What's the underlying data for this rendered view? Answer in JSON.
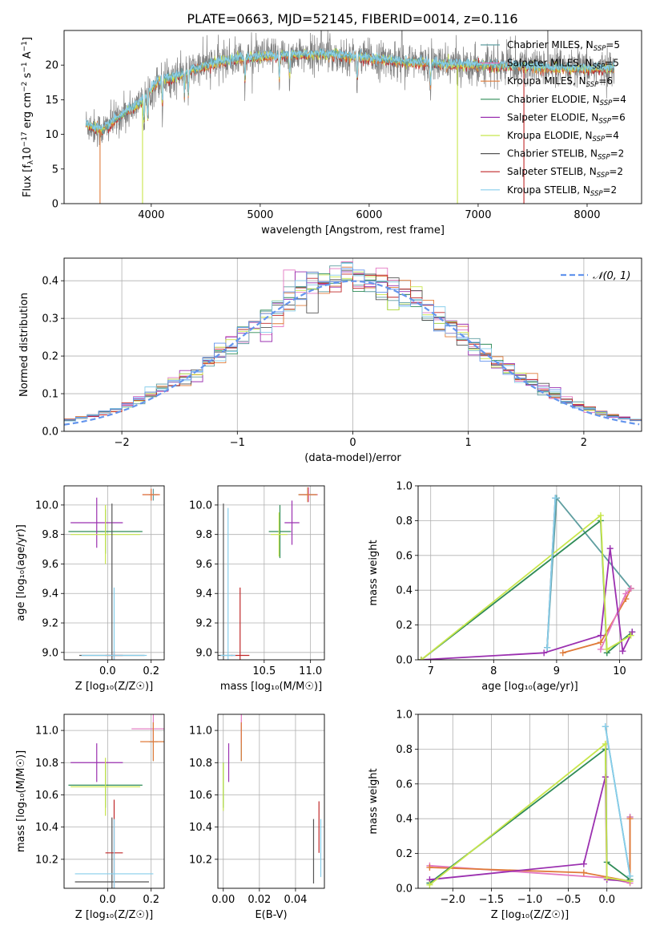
{
  "figure_title": "PLATE=0663, MJD=52145, FIBERID=0014, z=0.116",
  "colors": {
    "Chabrier MILES": "#5f9ea0",
    "Salpeter MILES": "#e377c2",
    "Kroupa MILES": "#e07b39",
    "Chabrier ELODIE": "#2e8b57",
    "Salpeter ELODIE": "#9b30b0",
    "Kroupa ELODIE": "#c8e64c",
    "Chabrier STELIB": "#555555",
    "Salpeter STELIB": "#c0282a",
    "Kroupa STELIB": "#87ceeb",
    "extra": "#6495ed"
  },
  "chart_data": [
    {
      "type": "line",
      "title": "PLATE=0663, MJD=52145, FIBERID=0014, z=0.116",
      "xlabel": "wavelength [Angstrom, rest frame]",
      "ylabel_parts": [
        "Flux [f",
        "λ",
        "10",
        "−17",
        " erg cm",
        "−2",
        " s",
        "−1",
        " A",
        "−1",
        "]"
      ],
      "xlim": [
        3200,
        8500
      ],
      "ylim": [
        0,
        25
      ],
      "xticks": [
        4000,
        5000,
        6000,
        7000,
        8000
      ],
      "yticks": [
        0,
        5,
        10,
        15,
        20
      ],
      "legend_position": "right",
      "legend": [
        {
          "name": "Chabrier MILES",
          "nssp": "5"
        },
        {
          "name": "Salpeter MILES",
          "nssp": "5"
        },
        {
          "name": "Kroupa MILES",
          "nssp": "6"
        },
        {
          "name": "Chabrier ELODIE",
          "nssp": "4"
        },
        {
          "name": "Salpeter ELODIE",
          "nssp": "6"
        },
        {
          "name": "Kroupa ELODIE",
          "nssp": "4"
        },
        {
          "name": "Chabrier STELIB",
          "nssp": "2"
        },
        {
          "name": "Salpeter STELIB",
          "nssp": "2"
        },
        {
          "name": "Kroupa STELIB",
          "nssp": "2"
        }
      ],
      "spectrum_trend": {
        "x": [
          3400,
          3550,
          3700,
          3900,
          4050,
          4250,
          4500,
          4800,
          5000,
          5300,
          5600,
          6000,
          6300,
          6600,
          7000,
          7400,
          7800,
          8250
        ],
        "y": [
          11.5,
          10.5,
          12.5,
          14.5,
          17.5,
          18.5,
          20.0,
          21.0,
          21.2,
          21.5,
          21.6,
          21.0,
          20.5,
          20.2,
          20.0,
          19.8,
          19.5,
          19.5
        ]
      }
    },
    {
      "type": "step",
      "xlabel": "(data-model)/error",
      "ylabel": "Normed distribution",
      "xlim": [
        -2.5,
        2.5
      ],
      "ylim": [
        0,
        0.46
      ],
      "xticks": [
        -2,
        -1,
        0,
        1,
        2
      ],
      "xtick_labels": [
        "−2",
        "−1",
        "0",
        "1",
        "2"
      ],
      "yticks": [
        0.0,
        0.1,
        0.2,
        0.3,
        0.4
      ],
      "legend_position": "top-right",
      "legend": "𝒩(0, 1)",
      "reference_curve": "normal(0,1)",
      "histogram_bins": [
        -2.5,
        -2.4,
        -2.3,
        -2.2,
        -2.1,
        -2.0,
        -1.9,
        -1.8,
        -1.7,
        -1.6,
        -1.5,
        -1.4,
        -1.3,
        -1.2,
        -1.1,
        -1.0,
        -0.9,
        -0.8,
        -0.7,
        -0.6,
        -0.5,
        -0.4,
        -0.3,
        -0.2,
        -0.1,
        0.0,
        0.1,
        0.2,
        0.3,
        0.4,
        0.5,
        0.6,
        0.7,
        0.8,
        0.9,
        1.0,
        1.1,
        1.2,
        1.3,
        1.4,
        1.5,
        1.6,
        1.7,
        1.8,
        1.9,
        2.0,
        2.1,
        2.2,
        2.3,
        2.4,
        2.5
      ]
    },
    {
      "type": "errorbar",
      "xlabel": "Z [log₁₀(Z/Z☉)]",
      "ylabel": "age  [log₁₀(age/yr)]",
      "xlim": [
        -0.2,
        0.26
      ],
      "ylim": [
        8.95,
        10.13
      ],
      "xticks": [
        0.0,
        0.2
      ],
      "xtick_labels": [
        "0.0",
        "0.2"
      ],
      "yticks": [
        9.0,
        9.2,
        9.4,
        9.6,
        9.8,
        10.0
      ],
      "points": [
        {
          "series": "Chabrier MILES",
          "x": 0.21,
          "xerr": 0.02,
          "y": 10.07,
          "yerr": 0.04
        },
        {
          "series": "Salpeter MILES",
          "x": 0.2,
          "xerr": 0.04,
          "y": 10.07,
          "yerr": 0.04
        },
        {
          "series": "Kroupa MILES",
          "x": 0.2,
          "xerr": 0.04,
          "y": 10.07,
          "yerr": 0.04
        },
        {
          "series": "Chabrier ELODIE",
          "x": -0.01,
          "xerr": 0.17,
          "y": 9.82,
          "yerr": 0.15
        },
        {
          "series": "Salpeter ELODIE",
          "x": -0.05,
          "xerr": 0.12,
          "y": 9.88,
          "yerr": 0.17
        },
        {
          "series": "Kroupa ELODIE",
          "x": -0.01,
          "xerr": 0.16,
          "y": 9.8,
          "yerr": 0.2
        },
        {
          "series": "Chabrier STELIB",
          "x": 0.02,
          "xerr": 0.15,
          "y": 8.98,
          "yerr": 1.03
        },
        {
          "series": "Salpeter STELIB",
          "x": 0.03,
          "xerr": 0.04,
          "y": 8.98,
          "yerr": 0.03
        },
        {
          "series": "Kroupa STELIB",
          "x": 0.03,
          "xerr": 0.15,
          "y": 8.98,
          "yerr": 0.46
        }
      ]
    },
    {
      "type": "errorbar",
      "xlabel": "mass [log₁₀(M/M☉)]",
      "ylabel": "",
      "xlim": [
        10.0,
        11.15
      ],
      "ylim": [
        8.95,
        10.13
      ],
      "xticks": [
        10.5,
        11.0
      ],
      "xtick_labels": [
        "10.5",
        "11.0"
      ],
      "yticks": [
        9.0,
        9.2,
        9.4,
        9.6,
        9.8,
        10.0
      ],
      "points": [
        {
          "series": "Chabrier MILES",
          "x": 10.97,
          "xerr": 0.1,
          "y": 10.07,
          "yerr": 0.05
        },
        {
          "series": "Salpeter MILES",
          "x": 10.98,
          "xerr": 0.1,
          "y": 10.07,
          "yerr": 0.05
        },
        {
          "series": "Kroupa MILES",
          "x": 10.97,
          "xerr": 0.1,
          "y": 10.07,
          "yerr": 0.05
        },
        {
          "series": "Chabrier ELODIE",
          "x": 10.67,
          "xerr": 0.12,
          "y": 9.82,
          "yerr": 0.18
        },
        {
          "series": "Salpeter ELODIE",
          "x": 10.8,
          "xerr": 0.08,
          "y": 9.88,
          "yerr": 0.15
        },
        {
          "series": "Kroupa ELODIE",
          "x": 10.66,
          "xerr": 0.09,
          "y": 9.8,
          "yerr": 0.15
        },
        {
          "series": "Chabrier STELIB",
          "x": 10.06,
          "xerr": 0.1,
          "y": 8.98,
          "yerr": 1.03
        },
        {
          "series": "Salpeter STELIB",
          "x": 10.24,
          "xerr": 0.1,
          "y": 8.98,
          "yerr": 0.46
        },
        {
          "series": "Kroupa STELIB",
          "x": 10.11,
          "xerr": 0.08,
          "y": 8.98,
          "yerr": 1.0
        }
      ]
    },
    {
      "type": "line",
      "xlabel": "age  [log₁₀(age/yr)]",
      "ylabel": "mass weight",
      "xlim": [
        6.8,
        10.35
      ],
      "ylim": [
        0,
        1.0
      ],
      "xticks": [
        7,
        8,
        9,
        10
      ],
      "yticks": [
        0.0,
        0.2,
        0.4,
        0.6,
        0.8,
        1.0
      ],
      "series": [
        {
          "name": "Chabrier MILES",
          "x": [
            8.85,
            9.0,
            10.18
          ],
          "y": [
            0.07,
            0.93,
            0.41
          ]
        },
        {
          "name": "Kroupa MILES",
          "x": [
            9.1,
            9.7,
            10.1,
            10.18
          ],
          "y": [
            0.04,
            0.1,
            0.35,
            0.41
          ]
        },
        {
          "name": "Salpeter MILES",
          "x": [
            9.7,
            10.1,
            10.18
          ],
          "y": [
            0.06,
            0.38,
            0.41
          ]
        },
        {
          "name": "Chabrier ELODIE",
          "x": [
            6.85,
            9.7,
            9.8,
            10.2
          ],
          "y": [
            0.0,
            0.8,
            0.04,
            0.16
          ]
        },
        {
          "name": "Salpeter ELODIE",
          "x": [
            6.85,
            8.8,
            9.7,
            9.85,
            10.05,
            10.2
          ],
          "y": [
            0.0,
            0.04,
            0.14,
            0.64,
            0.05,
            0.16
          ]
        },
        {
          "name": "Kroupa ELODIE",
          "x": [
            6.85,
            9.7,
            9.8,
            10.18
          ],
          "y": [
            0.0,
            0.83,
            0.06,
            0.14
          ]
        },
        {
          "name": "Chabrier STELIB",
          "x": [
            8.85,
            8.98
          ],
          "y": [
            0.07,
            0.93
          ]
        },
        {
          "name": "Kroupa STELIB",
          "x": [
            8.85,
            8.98
          ],
          "y": [
            0.07,
            0.93
          ]
        }
      ]
    },
    {
      "type": "errorbar",
      "xlabel": "Z [log₁₀(Z/Z☉)]",
      "ylabel": "mass [log₁₀(M/M☉)]",
      "xlim": [
        -0.2,
        0.26
      ],
      "ylim": [
        10.02,
        11.1
      ],
      "xticks": [
        0.0,
        0.2
      ],
      "xtick_labels": [
        "0.0",
        "0.2"
      ],
      "yticks": [
        10.2,
        10.4,
        10.6,
        10.8,
        11.0
      ],
      "points": [
        {
          "series": "Chabrier MILES",
          "x": 0.21,
          "xerr": 0.02,
          "y": 10.93,
          "yerr": 0.12
        },
        {
          "series": "Salpeter MILES",
          "x": 0.21,
          "xerr": 0.1,
          "y": 11.01,
          "yerr": 0.09
        },
        {
          "series": "Kroupa MILES",
          "x": 0.21,
          "xerr": 0.06,
          "y": 10.93,
          "yerr": 0.12
        },
        {
          "series": "Chabrier ELODIE",
          "x": -0.01,
          "xerr": 0.17,
          "y": 10.66,
          "yerr": 0.14
        },
        {
          "series": "Salpeter ELODIE",
          "x": -0.05,
          "xerr": 0.12,
          "y": 10.8,
          "yerr": 0.12
        },
        {
          "series": "Kroupa ELODIE",
          "x": -0.01,
          "xerr": 0.16,
          "y": 10.65,
          "yerr": 0.18
        },
        {
          "series": "Chabrier STELIB",
          "x": 0.02,
          "xerr": 0.17,
          "y": 10.06,
          "yerr": 0.4
        },
        {
          "series": "Salpeter STELIB",
          "x": 0.03,
          "xerr": 0.04,
          "y": 10.24,
          "yerr": 0.33
        },
        {
          "series": "Kroupa STELIB",
          "x": 0.03,
          "xerr": 0.18,
          "y": 10.11,
          "yerr": 0.34
        }
      ]
    },
    {
      "type": "errorbar",
      "xlabel": "E(B-V)",
      "ylabel": "",
      "xlim": [
        -0.003,
        0.056
      ],
      "ylim": [
        10.02,
        11.1
      ],
      "xticks": [
        0.0,
        0.02,
        0.04
      ],
      "xtick_labels": [
        "0.00",
        "0.02",
        "0.04"
      ],
      "yticks": [
        10.2,
        10.4,
        10.6,
        10.8,
        11.0
      ],
      "points": [
        {
          "series": "Chabrier MILES",
          "x": 0.01,
          "y": 10.93,
          "yerr": 0.12
        },
        {
          "series": "Salpeter MILES",
          "x": 0.01,
          "y": 11.01,
          "yerr": 0.09
        },
        {
          "series": "Kroupa MILES",
          "x": 0.01,
          "y": 10.93,
          "yerr": 0.12
        },
        {
          "series": "Chabrier ELODIE",
          "x": 0.0,
          "y": 10.66,
          "yerr": 0.14
        },
        {
          "series": "Salpeter ELODIE",
          "x": 0.003,
          "y": 10.8,
          "yerr": 0.12
        },
        {
          "series": "Kroupa ELODIE",
          "x": 0.0,
          "y": 10.65,
          "yerr": 0.15
        },
        {
          "series": "Chabrier STELIB",
          "x": 0.05,
          "y": 10.25,
          "yerr": 0.2
        },
        {
          "series": "Salpeter STELIB",
          "x": 0.053,
          "y": 10.4,
          "yerr": 0.16
        },
        {
          "series": "Kroupa STELIB",
          "x": 0.054,
          "y": 10.27,
          "yerr": 0.18
        }
      ]
    },
    {
      "type": "line",
      "xlabel": "Z [log₁₀(Z/Z☉)]",
      "ylabel": "mass weight",
      "xlim": [
        -2.45,
        0.45
      ],
      "ylim": [
        0,
        1.0
      ],
      "xticks": [
        -2.0,
        -1.5,
        -1.0,
        -0.5,
        0.0
      ],
      "xtick_labels": [
        "−2.0",
        "−1.5",
        "−1.0",
        "−0.5",
        "0.0"
      ],
      "yticks": [
        0.0,
        0.2,
        0.4,
        0.6,
        0.8,
        1.0
      ],
      "series": [
        {
          "name": "Chabrier MILES",
          "x": [
            -0.02,
            0.3,
            0.3
          ],
          "y": [
            0.93,
            0.07,
            0.41
          ]
        },
        {
          "name": "Salpeter MILES",
          "x": [
            -2.3,
            0.0,
            0.3,
            0.3
          ],
          "y": [
            0.13,
            0.06,
            0.03,
            0.41
          ]
        },
        {
          "name": "Kroupa MILES",
          "x": [
            -2.3,
            -0.3,
            0.3,
            0.3
          ],
          "y": [
            0.12,
            0.09,
            0.04,
            0.4
          ]
        },
        {
          "name": "Chabrier ELODIE",
          "x": [
            -2.3,
            -0.02,
            0.0,
            0.3
          ],
          "y": [
            0.03,
            0.8,
            0.15,
            0.05
          ]
        },
        {
          "name": "Salpeter ELODIE",
          "x": [
            -2.3,
            -0.3,
            -0.02,
            0.0,
            0.3
          ],
          "y": [
            0.05,
            0.14,
            0.64,
            0.05,
            0.04
          ]
        },
        {
          "name": "Kroupa ELODIE",
          "x": [
            -2.3,
            -0.02,
            0.0,
            0.3
          ],
          "y": [
            0.02,
            0.83,
            0.06,
            0.04
          ]
        },
        {
          "name": "Kroupa STELIB",
          "x": [
            -0.02,
            0.3
          ],
          "y": [
            0.93,
            0.07
          ]
        }
      ]
    }
  ]
}
